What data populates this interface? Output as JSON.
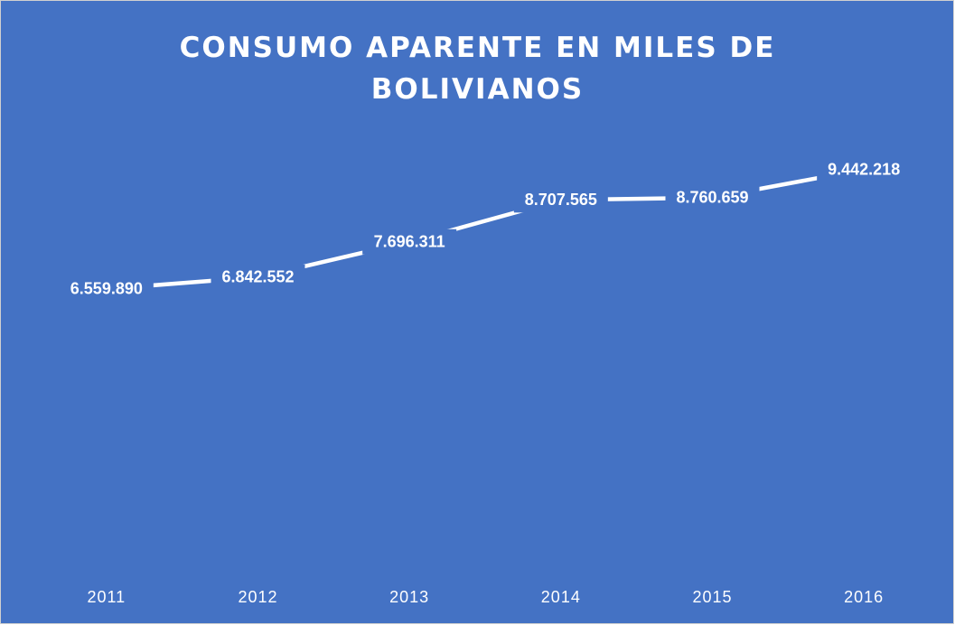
{
  "chart_data": {
    "type": "line",
    "title": "CONSUMO APARENTE EN MILES DE BOLIVIANOS",
    "categories": [
      "2011",
      "2012",
      "2013",
      "2014",
      "2015",
      "2016"
    ],
    "values": [
      6559890,
      6842552,
      7696311,
      8707565,
      8760659,
      9442218
    ],
    "value_labels": [
      "6.559.890",
      "6.842.552",
      "7.696.311",
      "8.707.565",
      "8.760.659",
      "9.442.218"
    ],
    "color": "#ffffff",
    "background": "#4472c4",
    "ylim": [
      0,
      10000000
    ]
  }
}
